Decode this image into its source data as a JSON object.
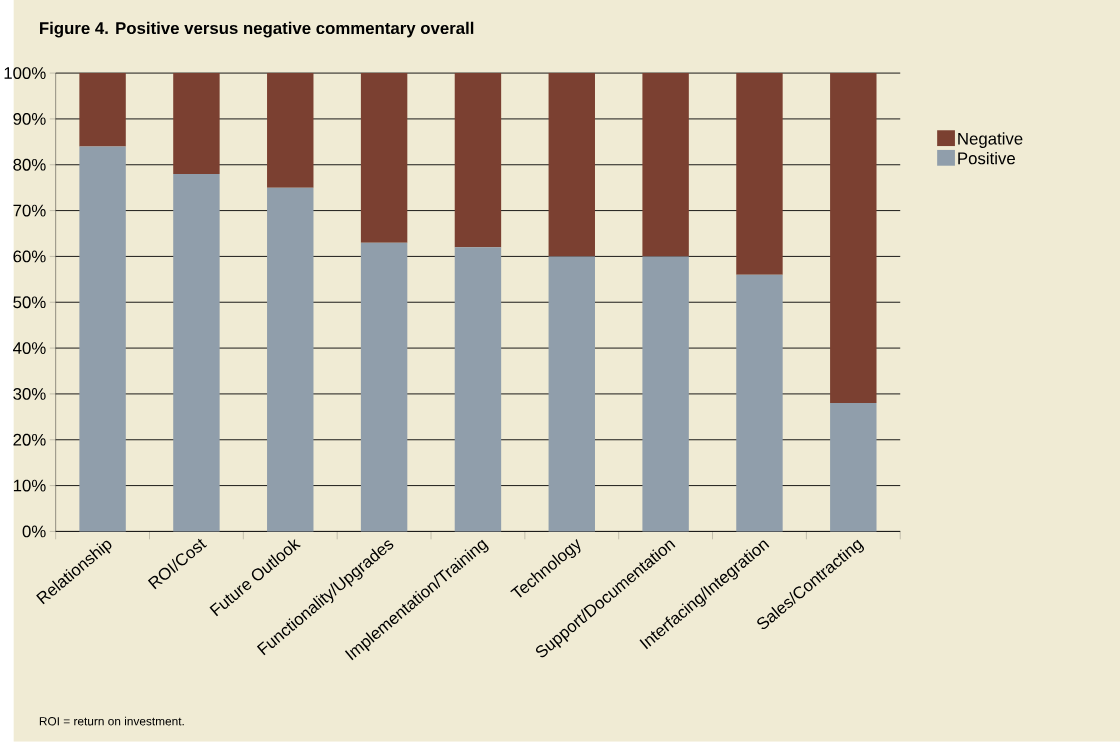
{
  "chart_data": {
    "type": "bar",
    "stacked": true,
    "title": "Figure 4. Positive versus negative commentary overall",
    "categories": [
      "Relationship",
      "ROI/Cost",
      "Future Outlook",
      "Functionality/Upgrades",
      "Implementation/Training",
      "Technology",
      "Support/Documentation",
      "Interfacing/Integration",
      "Sales/Contracting"
    ],
    "series": [
      {
        "name": "Positive",
        "color": "#909eab",
        "values": [
          84,
          78,
          75,
          63,
          62,
          60,
          60,
          56,
          28
        ]
      },
      {
        "name": "Negative",
        "color": "#7b4031",
        "values": [
          16,
          22,
          25,
          37,
          38,
          40,
          40,
          44,
          72
        ]
      }
    ],
    "ylim": [
      0,
      100
    ],
    "yticks": [
      {
        "value": 0,
        "label": "0%"
      },
      {
        "value": 10,
        "label": "10%"
      },
      {
        "value": 20,
        "label": "20%"
      },
      {
        "value": 30,
        "label": "30%"
      },
      {
        "value": 40,
        "label": "40%"
      },
      {
        "value": 50,
        "label": "50%"
      },
      {
        "value": 60,
        "label": "60%"
      },
      {
        "value": 70,
        "label": "70%"
      },
      {
        "value": 80,
        "label": "80%"
      },
      {
        "value": 90,
        "label": "90%"
      },
      {
        "value": 100,
        "label": "100%"
      }
    ],
    "grid": "y",
    "legend": "right",
    "annotations": [
      "ROI = return on investment."
    ]
  }
}
